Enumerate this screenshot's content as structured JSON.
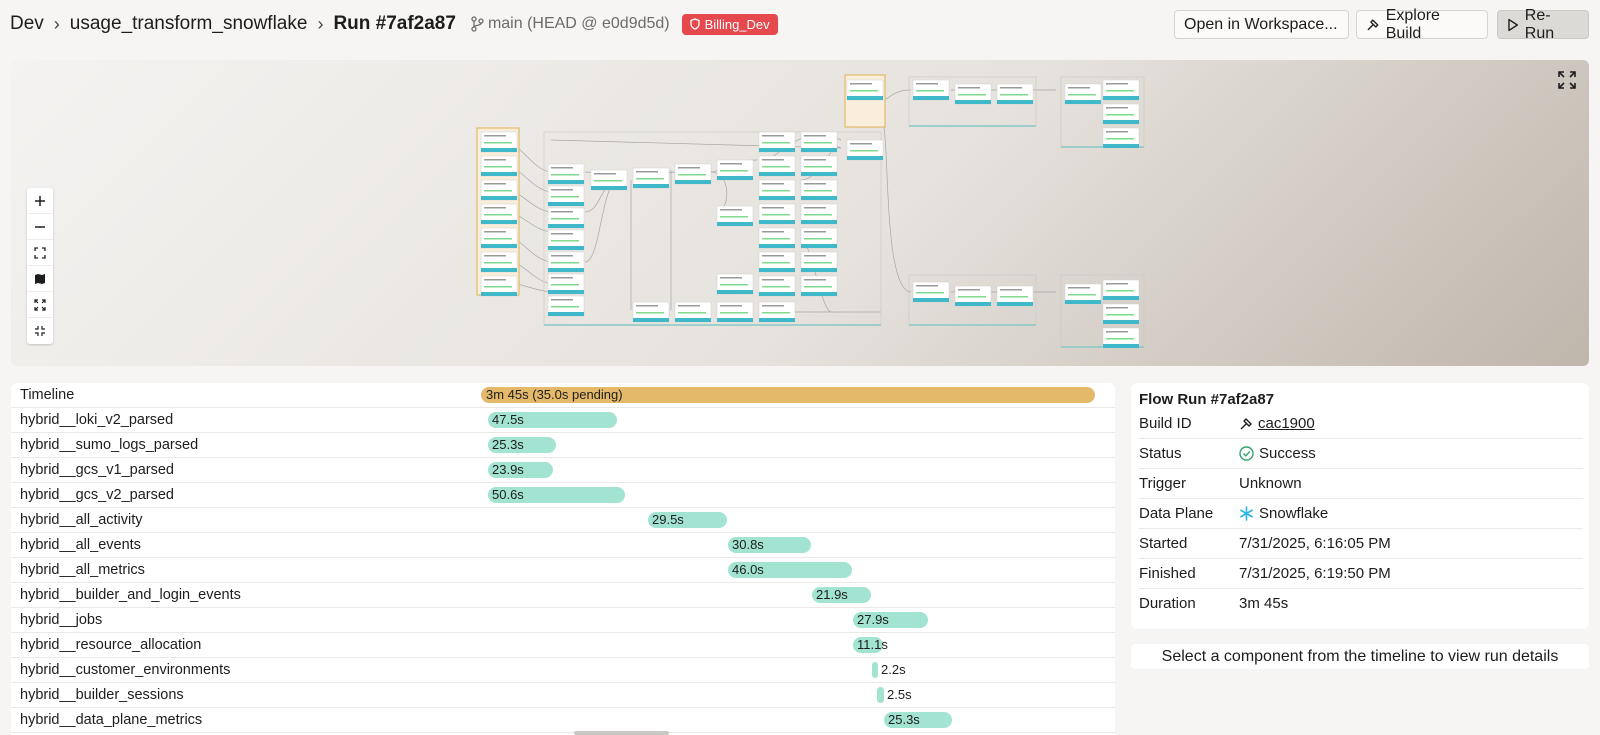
{
  "header": {
    "breadcrumbs": [
      "Dev",
      "usage_transform_snowflake",
      "Run #7af2a87"
    ],
    "branch": "main (HEAD @ e0d9d5d)",
    "env_badge": "Billing_Dev",
    "buttons": {
      "open_workspace": "Open in Workspace...",
      "explore_build": "Explore Build",
      "rerun": "Re-Run"
    }
  },
  "timeline": {
    "header_label": "Timeline",
    "total": "3m 45s (35.0s pending)",
    "rows": [
      {
        "name": "hybrid__loki_v2_parsed",
        "duration": "47.5s"
      },
      {
        "name": "hybrid__sumo_logs_parsed",
        "duration": "25.3s"
      },
      {
        "name": "hybrid__gcs_v1_parsed",
        "duration": "23.9s"
      },
      {
        "name": "hybrid__gcs_v2_parsed",
        "duration": "50.6s"
      },
      {
        "name": "hybrid__all_activity",
        "duration": "29.5s"
      },
      {
        "name": "hybrid__all_events",
        "duration": "30.8s"
      },
      {
        "name": "hybrid__all_metrics",
        "duration": "46.0s"
      },
      {
        "name": "hybrid__builder_and_login_events",
        "duration": "21.9s"
      },
      {
        "name": "hybrid__jobs",
        "duration": "27.9s"
      },
      {
        "name": "hybrid__resource_allocation",
        "duration": "11.1s"
      },
      {
        "name": "hybrid__customer_environments",
        "duration": "2.2s"
      },
      {
        "name": "hybrid__builder_sessions",
        "duration": "2.5s"
      },
      {
        "name": "hybrid__data_plane_metrics",
        "duration": "25.3s"
      }
    ]
  },
  "details": {
    "title": "Flow Run #7af2a87",
    "build_id_label": "Build ID",
    "build_id": "cac1900",
    "status_label": "Status",
    "status": "Success",
    "trigger_label": "Trigger",
    "trigger": "Unknown",
    "data_plane_label": "Data Plane",
    "data_plane": "Snowflake",
    "started_label": "Started",
    "started": "7/31/2025, 6:16:05 PM",
    "finished_label": "Finished",
    "finished": "7/31/2025, 6:19:50 PM",
    "duration_label": "Duration",
    "duration": "3m 45s"
  },
  "select_hint": "Select a component from the timeline to view run details",
  "colors": {
    "badge": "#e5484d",
    "timeline_total": "#e4b96a",
    "timeline_bar": "#a3e3d1",
    "success": "#30a46c"
  }
}
